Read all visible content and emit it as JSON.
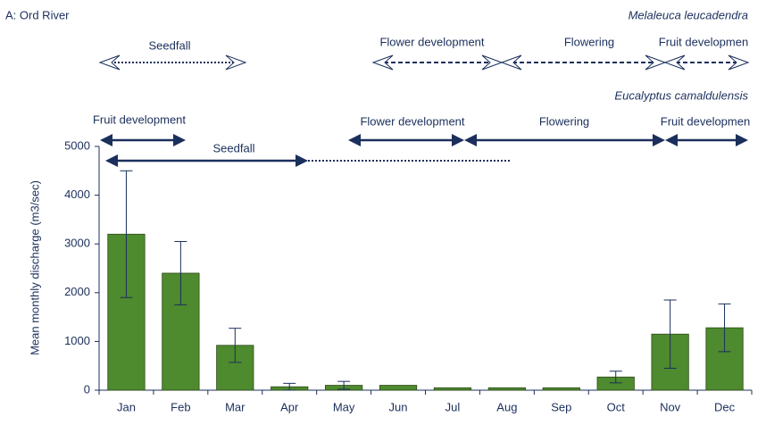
{
  "chart_data": {
    "type": "bar",
    "title": "A: Ord River",
    "ylabel": "Mean monthly discharge (m3/sec)",
    "categories": [
      "Jan",
      "Feb",
      "Mar",
      "Apr",
      "May",
      "Jun",
      "Jul",
      "Aug",
      "Sep",
      "Oct",
      "Nov",
      "Dec"
    ],
    "values": [
      3200,
      2400,
      920,
      70,
      100,
      100,
      50,
      50,
      50,
      270,
      1150,
      1280
    ],
    "errors": [
      1300,
      650,
      350,
      70,
      80,
      null,
      null,
      null,
      null,
      120,
      700,
      490
    ],
    "color": "#4e8a2e",
    "ylim": [
      0,
      5000
    ],
    "yticks": [
      0,
      1000,
      2000,
      3000,
      4000,
      5000
    ],
    "species": [
      {
        "name": "Melaleuca leucadendra",
        "phases": [
          "Seedfall",
          "Flower development",
          "Flowering",
          "Fruit developmen"
        ]
      },
      {
        "name": "Eucalyptus camaldulensis",
        "phases": [
          "Fruit development",
          "Seedfall",
          "Flower development",
          "Flowering",
          "Fruit developmen"
        ]
      }
    ]
  }
}
